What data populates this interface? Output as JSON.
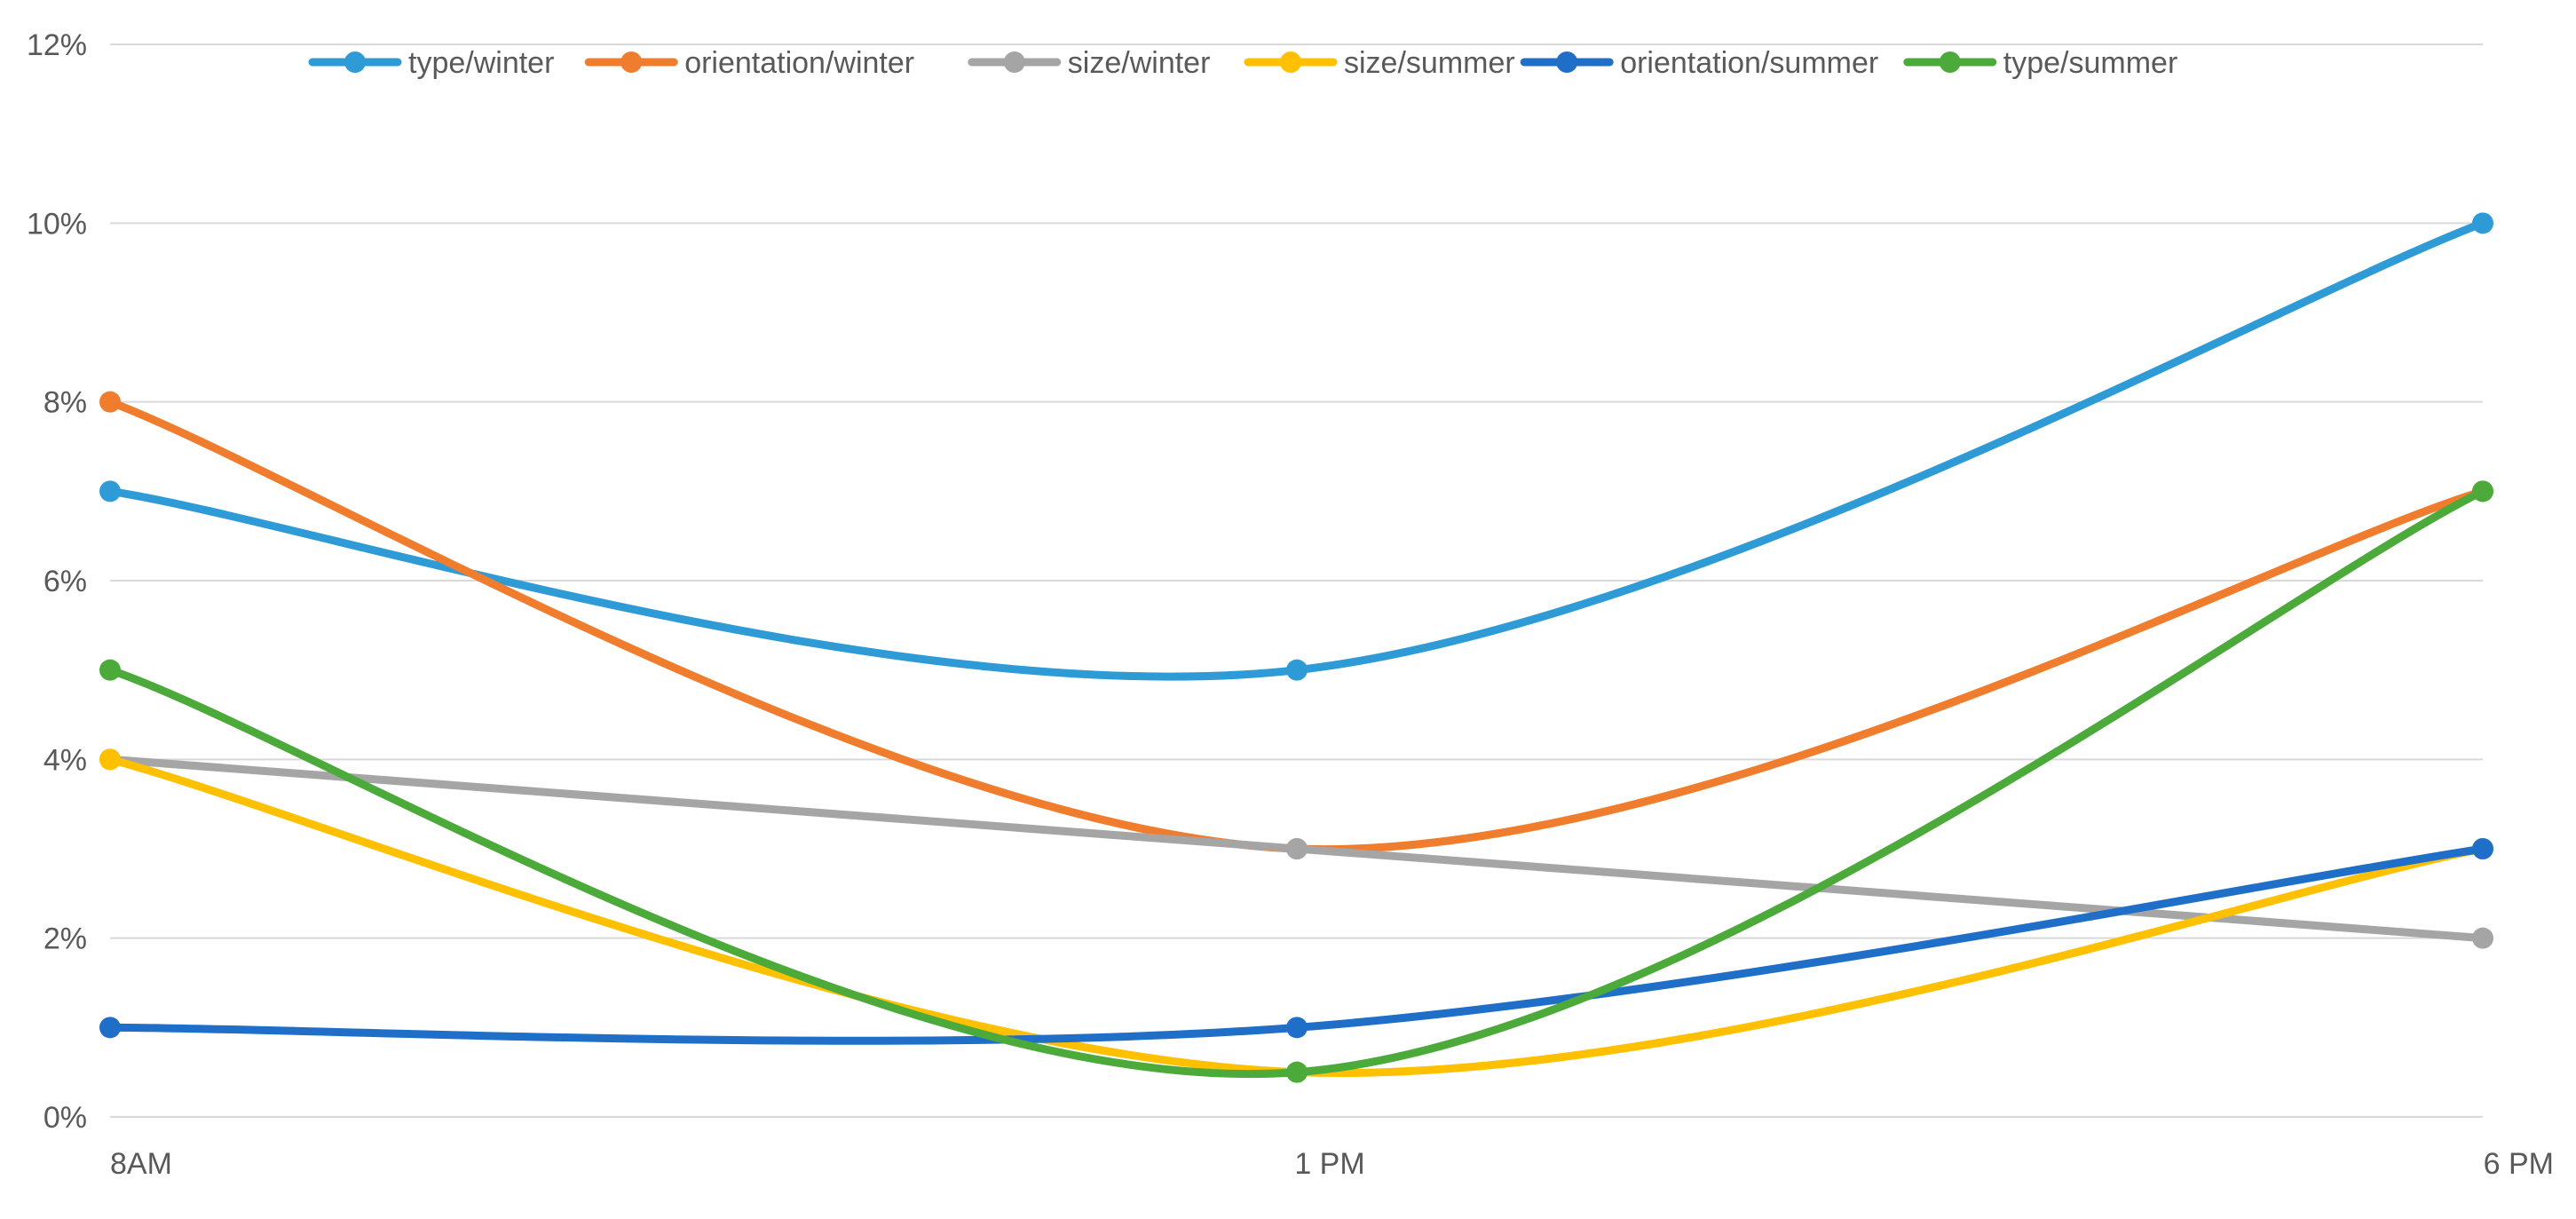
{
  "chart_data": {
    "type": "line",
    "title": "",
    "xlabel": "",
    "ylabel": "",
    "categories": [
      "8AM",
      "1 PM",
      "6 PM"
    ],
    "ylim": [
      0,
      12
    ],
    "y_ticks": [
      0,
      2,
      4,
      6,
      8,
      10,
      12
    ],
    "y_tick_labels": [
      "0%",
      "2%",
      "4%",
      "6%",
      "8%",
      "10%",
      "12%"
    ],
    "grid": true,
    "smooth": true,
    "legend_position": "top",
    "series": [
      {
        "name": "type/winter",
        "color": "#2E9BD6",
        "values": [
          7,
          5,
          10
        ]
      },
      {
        "name": "orientation/winter",
        "color": "#F07D2E",
        "values": [
          8,
          3,
          7
        ]
      },
      {
        "name": "size/winter",
        "color": "#A5A5A5",
        "values": [
          4,
          3,
          2
        ]
      },
      {
        "name": "size/summer",
        "color": "#FFC000",
        "values": [
          4,
          0.5,
          3
        ]
      },
      {
        "name": "orientation/summer",
        "color": "#1F6FC8",
        "values": [
          1,
          1,
          3
        ]
      },
      {
        "name": "type/summer",
        "color": "#4BAA3A",
        "values": [
          5,
          0.5,
          7
        ]
      }
    ]
  }
}
